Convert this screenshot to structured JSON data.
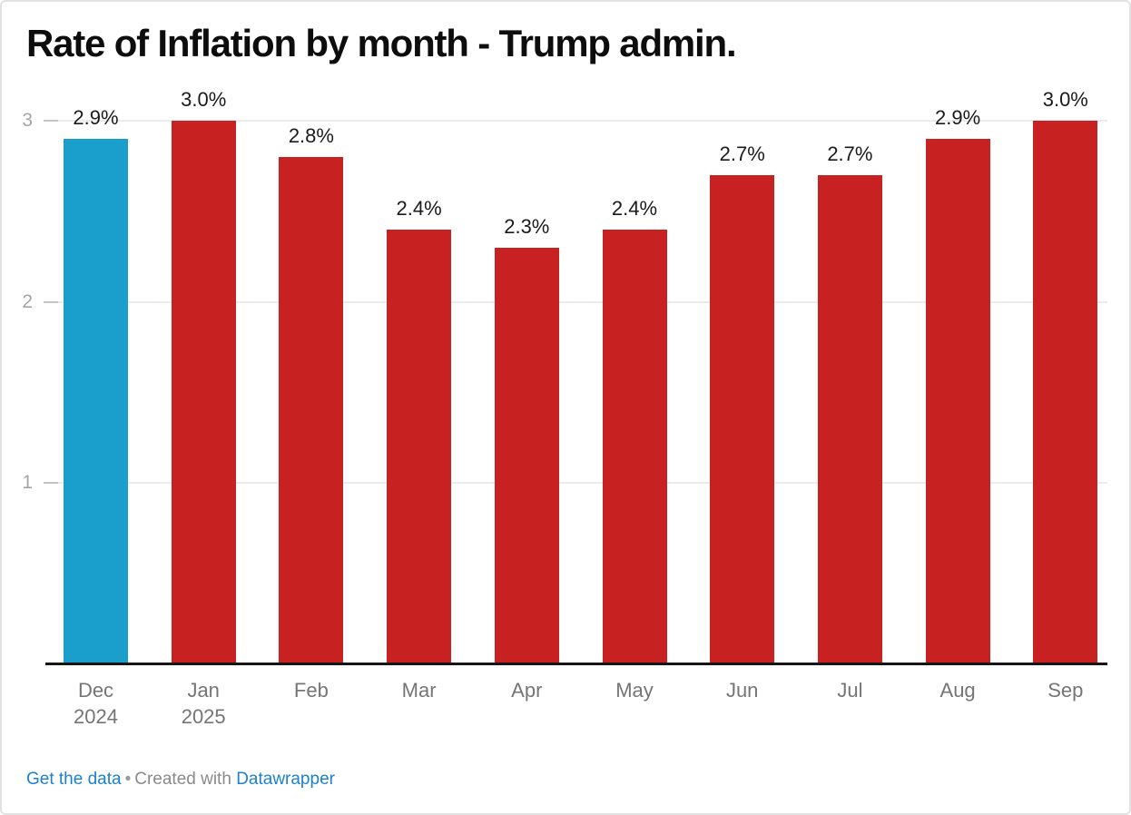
{
  "chart_data": {
    "type": "bar",
    "title": "Rate of Inflation by month - Trump admin.",
    "categories": [
      "Dec\n2024",
      "Jan\n2025",
      "Feb",
      "Mar",
      "Apr",
      "May",
      "Jun",
      "Jul",
      "Aug",
      "Sep"
    ],
    "values": [
      2.9,
      3.0,
      2.8,
      2.4,
      2.3,
      2.4,
      2.7,
      2.7,
      2.9,
      3.0
    ],
    "value_labels": [
      "2.9%",
      "3.0%",
      "2.8%",
      "2.4%",
      "2.3%",
      "2.4%",
      "2.7%",
      "2.7%",
      "2.9%",
      "3.0%"
    ],
    "xlabel": "",
    "ylabel": "",
    "y_ticks": [
      1,
      2,
      3
    ],
    "ylim": [
      0,
      3
    ],
    "grid": "horizontal",
    "legend_position": "none",
    "highlight_index": 0,
    "highlight_color": "#1a9ecc",
    "bar_color": "#c72221"
  },
  "footer": {
    "get_data_label": "Get the data",
    "separator": "•",
    "created_with_label": "Created with",
    "brand_label": "Datawrapper",
    "link_color": "#1d80d2"
  }
}
